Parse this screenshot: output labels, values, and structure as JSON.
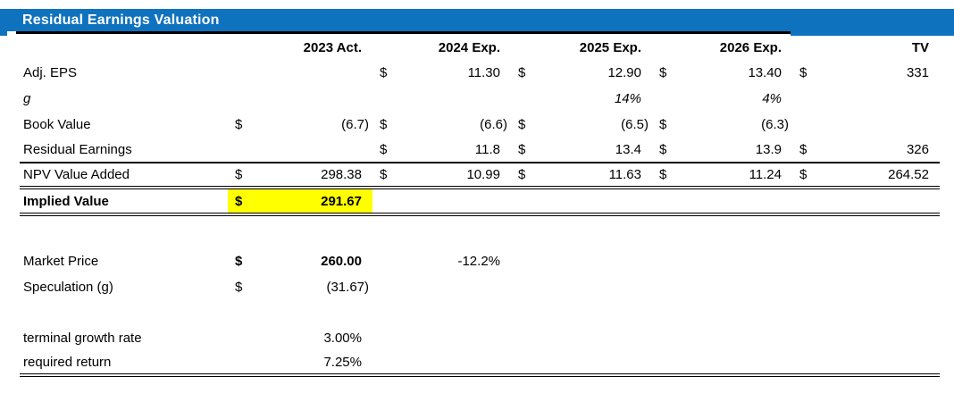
{
  "title": "Residual Earnings Valuation",
  "colors": {
    "header_blue": "#0f72be",
    "highlight_yellow": "#ffff00",
    "text": "#000000"
  },
  "headers": {
    "y2023": "2023 Act.",
    "y2024": "2024 Exp.",
    "y2025": "2025 Exp.",
    "y2026": "2026 Exp.",
    "tv": "TV"
  },
  "rows": {
    "adj_eps": {
      "label": "Adj. EPS",
      "d2024": "$",
      "v2024": "11.30",
      "d2025": "$",
      "v2025": "12.90",
      "d2026": "$",
      "v2026": "13.40",
      "dtv": "$",
      "vtv": "331"
    },
    "g": {
      "label": "g",
      "v2025": "14%",
      "v2026": "4%"
    },
    "book_value": {
      "label": "Book Value",
      "d2023": "$",
      "v2023": "(6.7)",
      "d2024": "$",
      "v2024": "(6.6)",
      "d2025": "$",
      "v2025": "(6.5)",
      "d2026": "$",
      "v2026": "(6.3)"
    },
    "residual_earnings": {
      "label": "Residual Earnings",
      "d2024": "$",
      "v2024": "11.8",
      "d2025": "$",
      "v2025": "13.4",
      "d2026": "$",
      "v2026": "13.9",
      "dtv": "$",
      "vtv": "326"
    },
    "npv_value_added": {
      "label": "NPV Value Added",
      "d2023": "$",
      "v2023": "298.38",
      "d2024": "$",
      "v2024": "10.99",
      "d2025": "$",
      "v2025": "11.63",
      "d2026": "$",
      "v2026": "11.24",
      "dtv": "$",
      "vtv": "264.52"
    },
    "implied_value": {
      "label": "Implied Value",
      "d2023": "$",
      "v2023": "291.67"
    },
    "market_price": {
      "label": "Market Price",
      "d2023": "$",
      "v2023": "260.00",
      "v2024": "-12.2%"
    },
    "speculation": {
      "label": "Speculation (g)",
      "d2023": "$",
      "v2023": "(31.67)"
    },
    "terminal_growth": {
      "label": "terminal growth rate",
      "v2023": "3.00%"
    },
    "required_return": {
      "label": "required return",
      "v2023": "7.25%"
    }
  }
}
